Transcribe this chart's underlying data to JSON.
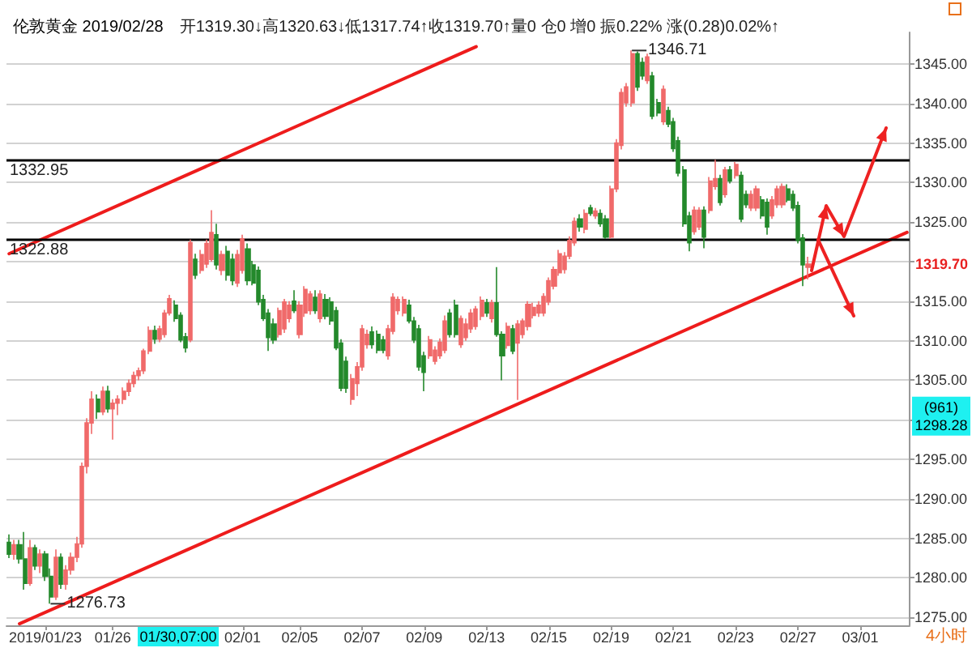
{
  "chart_data": {
    "type": "candlestick",
    "title": "伦敦黄金 2019/02/28",
    "subtitle": "开1319.30↓高1320.63↓低1317.74↑收1319.70↑量0 仓0 增0 振0.22% 涨(0.28)0.02%↑",
    "categories": [
      null,
      null,
      null,
      null,
      null,
      null,
      null,
      "2019/01/23",
      null,
      null,
      null,
      null,
      null,
      null,
      null,
      null,
      null,
      null,
      null,
      null,
      "01/26",
      null,
      null,
      null,
      null,
      null,
      null,
      null,
      null,
      null,
      null,
      null,
      null,
      null,
      null,
      null,
      null,
      null,
      null,
      null,
      null,
      null,
      null,
      null,
      null,
      "02/01",
      null,
      null,
      null,
      null,
      null,
      null,
      null,
      null,
      null,
      null,
      "02/05",
      null,
      null,
      null,
      null,
      null,
      null,
      null,
      null,
      null,
      null,
      null,
      "02/07",
      null,
      null,
      null,
      null,
      null,
      null,
      null,
      null,
      null,
      null,
      null,
      "02/09",
      null,
      null,
      null,
      null,
      null,
      null,
      null,
      null,
      null,
      null,
      null,
      "02/13",
      null,
      null,
      null,
      null,
      null,
      null,
      null,
      null,
      null,
      null,
      null,
      "02/15",
      null,
      null,
      null,
      null,
      null,
      null,
      null,
      null,
      null,
      null,
      null,
      "02/19",
      null,
      null,
      null,
      null,
      null,
      null,
      null,
      null,
      null,
      null,
      null,
      "02/21",
      null,
      null,
      null,
      null,
      null,
      null,
      null,
      null,
      null,
      null,
      null,
      "02/23",
      null,
      null,
      null,
      null,
      null,
      null,
      null,
      null,
      null,
      null,
      null,
      "02/27",
      null,
      null,
      null,
      null,
      null,
      null,
      null,
      null,
      null,
      null,
      null,
      "03/01",
      null,
      null,
      null,
      null,
      null,
      null,
      null,
      null,
      null
    ],
    "series": [
      {
        "type": "candlestick",
        "ohlc": [
          [
            1284.5,
            1285.5,
            1282.5,
            1283
          ],
          [
            1283,
            1284.8,
            1282.3,
            1284.2
          ],
          [
            1284.2,
            1284.8,
            1281.8,
            1282.4
          ],
          [
            1282.4,
            1285.8,
            1278.5,
            1279.3
          ],
          [
            1279.3,
            1284.8,
            1279,
            1283.8
          ],
          [
            1283.8,
            1284.2,
            1281,
            1281.5
          ],
          [
            1281.5,
            1283.6,
            1280.6,
            1283
          ],
          [
            1283,
            1283.4,
            1279.6,
            1280.2
          ],
          [
            1280.2,
            1281.2,
            1276.73,
            1277.6
          ],
          [
            1277.6,
            1283.6,
            1277.2,
            1282.6
          ],
          [
            1282.6,
            1283.1,
            1278.6,
            1279.2
          ],
          [
            1279.2,
            1281.6,
            1278.5,
            1281
          ],
          [
            1281,
            1283.2,
            1280.4,
            1282.6
          ],
          [
            1282.6,
            1285.2,
            1282,
            1284.3
          ],
          [
            1284.3,
            1294.6,
            1283.8,
            1294.1
          ],
          [
            1294.1,
            1300.2,
            1293.2,
            1299.6
          ],
          [
            1299.6,
            1303.6,
            1298.2,
            1302.6
          ],
          [
            1302.6,
            1303.2,
            1300.1,
            1301
          ],
          [
            1301,
            1304.2,
            1300.6,
            1303.6
          ],
          [
            1303.6,
            1304.3,
            1300.9,
            1301.4
          ],
          [
            1301.4,
            1302.6,
            1297.5,
            1302.1
          ],
          [
            1302.1,
            1303.1,
            1300.6,
            1302.6
          ],
          [
            1302.6,
            1304.1,
            1302,
            1303.6
          ],
          [
            1303.6,
            1305.1,
            1303,
            1304.6
          ],
          [
            1304.6,
            1306.1,
            1304.1,
            1305.6
          ],
          [
            1305.6,
            1306.6,
            1305,
            1306.2
          ],
          [
            1306.2,
            1309,
            1305.8,
            1308.7
          ],
          [
            1308.7,
            1311.8,
            1308.3,
            1311.3
          ],
          [
            1311.3,
            1311.9,
            1309.6,
            1310.2
          ],
          [
            1310.2,
            1311.9,
            1309.8,
            1311.5
          ],
          [
            1310.8,
            1313.9,
            1310.4,
            1313.5
          ],
          [
            1313.5,
            1315.8,
            1313.2,
            1315.3
          ],
          [
            1314.5,
            1315.1,
            1312.4,
            1312.8
          ],
          [
            1313.2,
            1313.6,
            1309.8,
            1310.1
          ],
          [
            1310.5,
            1311,
            1308.5,
            1309.1
          ],
          [
            1310.1,
            1322.8,
            1309.8,
            1322.4
          ],
          [
            1320.3,
            1321,
            1317.8,
            1318.3
          ],
          [
            1318.9,
            1321.5,
            1318.5,
            1320.9
          ],
          [
            1319.7,
            1322.8,
            1319.2,
            1322.3
          ],
          [
            1320.3,
            1326.5,
            1320,
            1323.7
          ],
          [
            1323.4,
            1324.8,
            1319,
            1319.6
          ],
          [
            1318.9,
            1321.4,
            1318.3,
            1320.9
          ],
          [
            1321.3,
            1322,
            1317.6,
            1318.3
          ],
          [
            1320.3,
            1321,
            1317,
            1317.6
          ],
          [
            1317.3,
            1321.5,
            1316.8,
            1320.9
          ],
          [
            1318.9,
            1323.4,
            1318.5,
            1322.9
          ],
          [
            1321.6,
            1322.3,
            1317,
            1317.6
          ],
          [
            1319.6,
            1320.1,
            1317,
            1317.3
          ],
          [
            1318.9,
            1319.4,
            1314.5,
            1314.9
          ],
          [
            1315.2,
            1315.8,
            1312.5,
            1312.8
          ],
          [
            1313.5,
            1314,
            1308.7,
            1310.4
          ],
          [
            1312.1,
            1312.8,
            1309.6,
            1310.1
          ],
          [
            1310.8,
            1314.2,
            1310.4,
            1313.8
          ],
          [
            1311.5,
            1315.3,
            1311,
            1314.9
          ],
          [
            1312.8,
            1315,
            1312.3,
            1314.5
          ],
          [
            1315,
            1316.4,
            1313.5,
            1313.8
          ],
          [
            1310.8,
            1315,
            1310.3,
            1314.5
          ],
          [
            1313.5,
            1316.9,
            1313,
            1316.5
          ],
          [
            1313.8,
            1316.3,
            1313.3,
            1315.9
          ],
          [
            1315.5,
            1316.4,
            1313.4,
            1313.8
          ],
          [
            1312.8,
            1316.4,
            1312.3,
            1315.9
          ],
          [
            1315.2,
            1315.9,
            1312.7,
            1313.1
          ],
          [
            1314.9,
            1315.5,
            1312,
            1312.5
          ],
          [
            1313.8,
            1314.3,
            1308.8,
            1309.1
          ],
          [
            1309.7,
            1310.2,
            1303.6,
            1304
          ],
          [
            1307.4,
            1308,
            1303.4,
            1304
          ],
          [
            1302.6,
            1305.8,
            1301.9,
            1305.2
          ],
          [
            1304.6,
            1307.3,
            1303,
            1306.7
          ],
          [
            1306.7,
            1312,
            1306.2,
            1311.5
          ],
          [
            1309.5,
            1311.4,
            1309,
            1310.8
          ],
          [
            1311.1,
            1311.8,
            1309,
            1309.5
          ],
          [
            1310.8,
            1311.3,
            1308.4,
            1308.8
          ],
          [
            1310.1,
            1310.6,
            1308.4,
            1308.8
          ],
          [
            1308.1,
            1312,
            1307.6,
            1311.5
          ],
          [
            1311.2,
            1316,
            1310.8,
            1315.5
          ],
          [
            1313.8,
            1315.6,
            1313.3,
            1315.2
          ],
          [
            1313.5,
            1315.6,
            1313.1,
            1315.2
          ],
          [
            1314.5,
            1315.2,
            1312.2,
            1312.5
          ],
          [
            1312.5,
            1313,
            1309.7,
            1310.1
          ],
          [
            1311.5,
            1312,
            1306.2,
            1306.7
          ],
          [
            1308.1,
            1308.6,
            1303.6,
            1306
          ],
          [
            1308.1,
            1310.6,
            1307.7,
            1310.1
          ],
          [
            1307.4,
            1309.3,
            1307,
            1308.8
          ],
          [
            1308.1,
            1310.3,
            1307.7,
            1309.8
          ],
          [
            1308.8,
            1313.2,
            1308.4,
            1312.5
          ],
          [
            1313.5,
            1314,
            1310.4,
            1310.8
          ],
          [
            1314.5,
            1315.2,
            1310.4,
            1310.8
          ],
          [
            1309.5,
            1313.2,
            1309.1,
            1312.8
          ],
          [
            1310.4,
            1312.8,
            1310,
            1312.1
          ],
          [
            1311.5,
            1314,
            1311,
            1313.5
          ],
          [
            1311.8,
            1314.4,
            1311.4,
            1314
          ],
          [
            1313.1,
            1315.6,
            1312.6,
            1315.1
          ],
          [
            1314.8,
            1315.3,
            1313,
            1313.5
          ],
          [
            1312.8,
            1315.2,
            1312.3,
            1314.8
          ],
          [
            1314.8,
            1319.3,
            1310.5,
            1310.8
          ],
          [
            1310.8,
            1311.2,
            1305,
            1308.1
          ],
          [
            1309.4,
            1312.3,
            1309,
            1311.8
          ],
          [
            1311.5,
            1312,
            1308.3,
            1308.7
          ],
          [
            1309.7,
            1312.6,
            1302.5,
            1312.1
          ],
          [
            1310.8,
            1312.8,
            1310.3,
            1312.5
          ],
          [
            1311.8,
            1315,
            1311.3,
            1314.6
          ],
          [
            1313.2,
            1314.8,
            1312.8,
            1314.2
          ],
          [
            1313.5,
            1315,
            1313,
            1314.5
          ],
          [
            1313.5,
            1316,
            1313.1,
            1315.6
          ],
          [
            1314.9,
            1318,
            1314.5,
            1317.6
          ],
          [
            1316.9,
            1319.4,
            1316.5,
            1319
          ],
          [
            1318.6,
            1321.5,
            1318.2,
            1321
          ],
          [
            1319,
            1321.2,
            1318.5,
            1320.7
          ],
          [
            1320.7,
            1323.2,
            1320.3,
            1322.7
          ],
          [
            1322.4,
            1325.6,
            1322,
            1325.1
          ],
          [
            1325.4,
            1326,
            1323.8,
            1324.4
          ],
          [
            1324.1,
            1326.6,
            1323.6,
            1326.1
          ],
          [
            1326.8,
            1327.2,
            1325.8,
            1326.1
          ],
          [
            1325.8,
            1326.8,
            1325.4,
            1326.4
          ],
          [
            1326.1,
            1326.6,
            1324.4,
            1324.8
          ],
          [
            1325.4,
            1325.9,
            1322.9,
            1323.1
          ],
          [
            1323.1,
            1329.6,
            1322.9,
            1329.2
          ],
          [
            1329.2,
            1335.5,
            1328.8,
            1335
          ],
          [
            1334.7,
            1341.9,
            1334.2,
            1341.4
          ],
          [
            1340.1,
            1342.6,
            1339.6,
            1342.1
          ],
          [
            1340.1,
            1346.71,
            1339.6,
            1346.3
          ],
          [
            1346.3,
            1346.6,
            1341.6,
            1342.1
          ],
          [
            1345.2,
            1345.8,
            1343,
            1343.5
          ],
          [
            1342.9,
            1346.3,
            1342.5,
            1345.9
          ],
          [
            1343.5,
            1344,
            1338,
            1338.4
          ],
          [
            1340.1,
            1340.6,
            1338.4,
            1338.8
          ],
          [
            1337.7,
            1342.3,
            1337.3,
            1341.8
          ],
          [
            1339.1,
            1339.6,
            1337,
            1337.4
          ],
          [
            1337.7,
            1338.2,
            1333.9,
            1334.3
          ],
          [
            1335.3,
            1335.8,
            1330.8,
            1331.2
          ],
          [
            1331.6,
            1332.1,
            1324.4,
            1324.8
          ],
          [
            1325.8,
            1326.3,
            1321.3,
            1322.4
          ],
          [
            1323.8,
            1327,
            1323.4,
            1326.5
          ],
          [
            1324.4,
            1326.9,
            1324,
            1326.5
          ],
          [
            1326.5,
            1327,
            1321.7,
            1323.1
          ],
          [
            1326.5,
            1330.7,
            1326.1,
            1330.2
          ],
          [
            1329.5,
            1332.9,
            1329.1,
            1330.5
          ],
          [
            1330.5,
            1331,
            1327.1,
            1327.5
          ],
          [
            1328.5,
            1332,
            1328.1,
            1331.6
          ],
          [
            1331.6,
            1332.1,
            1329.9,
            1330.2
          ],
          [
            1330.9,
            1332.6,
            1330.5,
            1332.3
          ],
          [
            1330.9,
            1331.4,
            1325,
            1325.4
          ],
          [
            1328.5,
            1329,
            1326.8,
            1327.2
          ],
          [
            1326.8,
            1329,
            1326.4,
            1328.5
          ],
          [
            1326.8,
            1329.6,
            1326.4,
            1329.2
          ],
          [
            1327.8,
            1328.3,
            1325.4,
            1325.8
          ],
          [
            1327.5,
            1328,
            1323.4,
            1324.4
          ],
          [
            1325.8,
            1328.3,
            1325.4,
            1327.8
          ],
          [
            1327.2,
            1329.6,
            1326.8,
            1329.2
          ],
          [
            1327.2,
            1329.9,
            1326.8,
            1329.5
          ],
          [
            1329.2,
            1329.8,
            1327.5,
            1327.8
          ],
          [
            1328.5,
            1329,
            1326.4,
            1326.8
          ],
          [
            1327.1,
            1327.6,
            1322.3,
            1322.7
          ],
          [
            1323,
            1323.5,
            1316.9,
            1319.6
          ],
          [
            1319.3,
            1320.63,
            1317.74,
            1319.7
          ],
          null,
          null,
          null,
          null,
          null,
          null,
          null,
          null,
          null,
          null,
          null,
          null,
          null,
          null,
          null,
          null,
          null,
          null,
          null
        ],
        "colors": [
          "#23892b",
          "#f06a6a",
          "#23892b",
          "#23892b",
          "#f06a6a",
          "#23892b",
          "#f06a6a",
          "#23892b",
          "#23892b",
          "#f06a6a",
          "#23892b",
          "#f06a6a",
          "#f06a6a",
          "#f06a6a",
          "#f06a6a",
          "#f06a6a",
          "#f06a6a",
          "#23892b",
          "#f06a6a",
          "#23892b",
          "#f06a6a",
          "#f06a6a",
          "#f06a6a",
          "#f06a6a",
          "#f06a6a",
          "#f06a6a",
          "#f06a6a",
          "#f06a6a",
          "#23892b",
          "#f06a6a",
          "#f06a6a",
          "#f06a6a",
          "#23892b",
          "#23892b",
          "#23892b",
          "#f06a6a",
          "#23892b",
          "#f06a6a",
          "#f06a6a",
          "#f06a6a",
          "#23892b",
          "#f06a6a",
          "#23892b",
          "#23892b",
          "#f06a6a",
          "#f06a6a",
          "#23892b",
          "#23892b",
          "#23892b",
          "#23892b",
          "#23892b",
          "#23892b",
          "#f06a6a",
          "#f06a6a",
          "#f06a6a",
          "#23892b",
          "#f06a6a",
          "#f06a6a",
          "#f06a6a",
          "#23892b",
          "#f06a6a",
          "#23892b",
          "#23892b",
          "#23892b",
          "#23892b",
          "#23892b",
          "#f06a6a",
          "#f06a6a",
          "#f06a6a",
          "#f06a6a",
          "#23892b",
          "#23892b",
          "#23892b",
          "#f06a6a",
          "#f06a6a",
          "#f06a6a",
          "#f06a6a",
          "#23892b",
          "#23892b",
          "#23892b",
          "#23892b",
          "#f06a6a",
          "#f06a6a",
          "#f06a6a",
          "#f06a6a",
          "#23892b",
          "#23892b",
          "#f06a6a",
          "#f06a6a",
          "#f06a6a",
          "#f06a6a",
          "#f06a6a",
          "#23892b",
          "#f06a6a",
          "#23892b",
          "#23892b",
          "#f06a6a",
          "#23892b",
          "#f06a6a",
          "#f06a6a",
          "#f06a6a",
          "#f06a6a",
          "#f06a6a",
          "#f06a6a",
          "#f06a6a",
          "#f06a6a",
          "#f06a6a",
          "#f06a6a",
          "#f06a6a",
          "#f06a6a",
          "#23892b",
          "#f06a6a",
          "#23892b",
          "#f06a6a",
          "#23892b",
          "#23892b",
          "#f06a6a",
          "#f06a6a",
          "#f06a6a",
          "#f06a6a",
          "#f06a6a",
          "#23892b",
          "#23892b",
          "#f06a6a",
          "#23892b",
          "#23892b",
          "#f06a6a",
          "#23892b",
          "#23892b",
          "#23892b",
          "#23892b",
          "#23892b",
          "#f06a6a",
          "#f06a6a",
          "#23892b",
          "#f06a6a",
          "#f06a6a",
          "#23892b",
          "#f06a6a",
          "#23892b",
          "#f06a6a",
          "#23892b",
          "#23892b",
          "#f06a6a",
          "#f06a6a",
          "#23892b",
          "#23892b",
          "#f06a6a",
          "#f06a6a",
          "#f06a6a",
          "#23892b",
          "#23892b",
          "#23892b",
          "#23892b",
          "#f06a6a",
          null,
          null,
          null,
          null,
          null,
          null,
          null,
          null,
          null,
          null,
          null,
          null,
          null,
          null,
          null,
          null,
          null,
          null,
          null
        ]
      },
      {
        "type": "line",
        "color": "#ee1c1c",
        "values": [
          1321.0,
          null,
          null,
          null,
          null,
          null,
          null,
          null,
          null,
          null,
          null,
          null,
          null,
          null,
          null,
          null,
          null,
          null,
          null,
          null,
          null,
          null,
          null,
          null,
          null,
          null,
          null,
          null,
          null,
          null,
          null,
          null,
          null,
          null,
          null,
          null,
          null,
          null,
          null,
          null,
          null,
          null,
          null,
          null,
          null,
          null,
          null,
          null,
          null,
          null,
          null,
          null,
          null,
          null,
          null,
          null,
          null,
          null,
          null,
          null,
          null,
          null,
          null,
          null,
          null,
          null,
          null,
          null,
          null,
          null,
          null,
          null,
          null,
          null,
          null,
          null,
          null,
          null,
          null,
          null,
          null,
          null,
          null,
          null,
          null,
          null,
          null,
          null,
          null,
          null,
          1347.2,
          null,
          null,
          null,
          null,
          null,
          null,
          null,
          null,
          null,
          null,
          null,
          null,
          null,
          null,
          null,
          null,
          null,
          null,
          null,
          null,
          null,
          null,
          null,
          null,
          null,
          null,
          null,
          null,
          null,
          null,
          null,
          null,
          null,
          null,
          null,
          null,
          null,
          null,
          null,
          null,
          null,
          null,
          null,
          null,
          null,
          null,
          null,
          null,
          null,
          null,
          null,
          null,
          null,
          null,
          null,
          null,
          null,
          null,
          null,
          null,
          null,
          null,
          null,
          null,
          null,
          null,
          null,
          null,
          null,
          null,
          null,
          null,
          null,
          null,
          null,
          null,
          null,
          null,
          null,
          null,
          null,
          null,
          null
        ]
      },
      {
        "type": "line",
        "color": "#ee1c1c",
        "values": [
          null,
          null,
          1274.2,
          null,
          null,
          null,
          null,
          null,
          null,
          null,
          null,
          null,
          null,
          null,
          null,
          null,
          null,
          null,
          null,
          null,
          null,
          null,
          null,
          null,
          null,
          null,
          null,
          null,
          null,
          null,
          null,
          null,
          null,
          null,
          null,
          null,
          null,
          null,
          null,
          null,
          null,
          null,
          null,
          null,
          null,
          null,
          null,
          null,
          null,
          null,
          null,
          null,
          null,
          null,
          null,
          null,
          null,
          null,
          null,
          null,
          null,
          null,
          null,
          null,
          null,
          null,
          null,
          null,
          null,
          null,
          null,
          null,
          null,
          null,
          null,
          null,
          null,
          null,
          null,
          null,
          null,
          null,
          null,
          null,
          null,
          null,
          null,
          null,
          null,
          null,
          null,
          null,
          null,
          null,
          null,
          null,
          null,
          null,
          null,
          null,
          null,
          null,
          null,
          null,
          null,
          null,
          null,
          null,
          null,
          null,
          null,
          null,
          null,
          null,
          null,
          null,
          null,
          null,
          null,
          null,
          null,
          null,
          null,
          null,
          null,
          null,
          null,
          null,
          null,
          null,
          null,
          null,
          null,
          null,
          null,
          null,
          null,
          null,
          null,
          null,
          null,
          null,
          null,
          null,
          null,
          null,
          null,
          null,
          null,
          null,
          null,
          null,
          null,
          null,
          null,
          null,
          null,
          null,
          null,
          null,
          null,
          null,
          null,
          null,
          null,
          null,
          null,
          null,
          null,
          null,
          null,
          null,
          null,
          1323.7
        ]
      }
    ],
    "ylim": [
      1274,
      1349
    ],
    "yticks": [
      {
        "value": 1275,
        "label": "1275.00"
      },
      {
        "value": 1280,
        "label": "1280.00"
      },
      {
        "value": 1285,
        "label": "1285.00"
      },
      {
        "value": 1290,
        "label": "1290.00"
      },
      {
        "value": 1295,
        "label": "1295.00"
      },
      {
        "value": 1300,
        "label": null
      },
      {
        "value": 1305,
        "label": "1305.00"
      },
      {
        "value": 1310,
        "label": "1310.00"
      },
      {
        "value": 1315,
        "label": "1315.00"
      },
      {
        "value": 1320,
        "label": null
      },
      {
        "value": 1325,
        "label": "1325.00"
      },
      {
        "value": 1330,
        "label": "1330.00"
      },
      {
        "value": 1335,
        "label": "1335.00"
      },
      {
        "value": 1340,
        "label": "1340.00"
      },
      {
        "value": 1345,
        "label": "1345.00"
      }
    ],
    "grid": "y",
    "ref_lines": [
      {
        "axis": "y",
        "value": 1332.95,
        "label": "1332.95",
        "color": "#000000"
      },
      {
        "axis": "y",
        "value": 1322.88,
        "label": "1322.88",
        "color": "#000000"
      }
    ],
    "annotations": [
      "1346.71",
      "1276.73",
      "1319.70",
      "(961)\n1298.28",
      "01/30,07:00",
      "4小时"
    ]
  }
}
